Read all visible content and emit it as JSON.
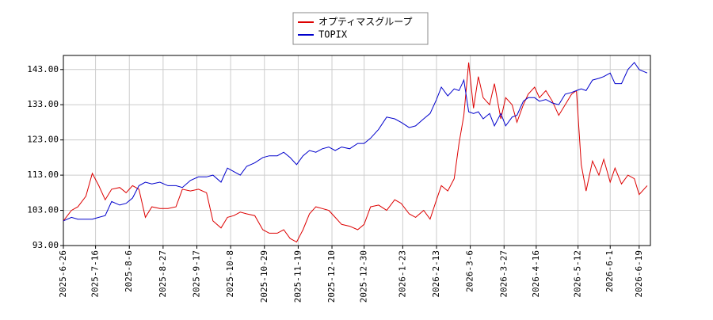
{
  "chart_data": {
    "type": "line",
    "x": [
      "2025-06-26",
      "2025-07-01",
      "2025-07-05",
      "2025-07-10",
      "2025-07-14",
      "2025-07-18",
      "2025-07-22",
      "2025-07-26",
      "2025-07-31",
      "2025-08-04",
      "2025-08-08",
      "2025-08-12",
      "2025-08-16",
      "2025-08-20",
      "2025-08-25",
      "2025-08-30",
      "2025-09-04",
      "2025-09-08",
      "2025-09-13",
      "2025-09-18",
      "2025-09-23",
      "2025-09-27",
      "2025-10-02",
      "2025-10-06",
      "2025-10-10",
      "2025-10-14",
      "2025-10-18",
      "2025-10-23",
      "2025-10-28",
      "2025-11-01",
      "2025-11-06",
      "2025-11-10",
      "2025-11-14",
      "2025-11-18",
      "2025-11-22",
      "2025-11-26",
      "2025-11-30",
      "2025-12-04",
      "2025-12-08",
      "2025-12-12",
      "2025-12-16",
      "2025-12-21",
      "2025-12-26",
      "2025-12-30",
      "2026-01-03",
      "2026-01-08",
      "2026-01-13",
      "2026-01-18",
      "2026-01-22",
      "2026-01-27",
      "2026-01-31",
      "2026-02-05",
      "2026-02-09",
      "2026-02-13",
      "2026-02-16",
      "2026-02-20",
      "2026-02-24",
      "2026-02-27",
      "2026-03-02",
      "2026-03-05",
      "2026-03-08",
      "2026-03-11",
      "2026-03-14",
      "2026-03-18",
      "2026-03-21",
      "2026-03-25",
      "2026-03-28",
      "2026-04-01",
      "2026-04-04",
      "2026-04-08",
      "2026-04-11",
      "2026-04-15",
      "2026-04-18",
      "2026-04-22",
      "2026-04-26",
      "2026-04-30",
      "2026-05-04",
      "2026-05-08",
      "2026-05-11",
      "2026-05-14",
      "2026-05-17",
      "2026-05-21",
      "2026-05-25",
      "2026-05-28",
      "2026-06-01",
      "2026-06-04",
      "2026-06-08",
      "2026-06-12",
      "2026-06-16",
      "2026-06-19",
      "2026-06-24"
    ],
    "series": [
      {
        "name": "オプティマスグループ",
        "color": "#dd0000",
        "values": [
          100,
          103,
          104,
          107,
          113.5,
          110,
          106,
          109,
          109.5,
          108,
          110,
          109,
          101,
          104,
          103.5,
          103.5,
          104,
          109,
          108.5,
          109,
          108,
          100,
          98,
          101,
          101.5,
          102.5,
          102,
          101.5,
          97.5,
          96.5,
          96.5,
          97.5,
          95,
          94,
          97.5,
          102,
          104,
          103.5,
          103,
          101,
          99,
          98.5,
          97.5,
          99,
          104,
          104.5,
          103,
          106,
          105,
          102,
          101,
          103,
          100.5,
          106,
          110,
          108.5,
          112,
          122,
          130,
          145,
          132,
          141,
          135,
          133,
          139,
          129,
          135,
          133,
          128,
          133,
          136,
          138,
          135,
          137,
          134,
          130,
          133,
          136,
          137,
          116,
          108.5,
          117,
          113,
          117.5,
          111,
          115,
          110.5,
          113,
          112,
          107.5,
          110
        ]
      },
      {
        "name": "TOPIX",
        "color": "#0000cc",
        "values": [
          100,
          101,
          100.5,
          100.5,
          100.5,
          101,
          101.5,
          105.5,
          104.5,
          105,
          106.5,
          110,
          111,
          110.5,
          111,
          110,
          110,
          109.5,
          111.5,
          112.5,
          112.5,
          113,
          111,
          115,
          114,
          113,
          115.5,
          116.5,
          118,
          118.5,
          118.5,
          119.5,
          118,
          116,
          118.5,
          120,
          119.5,
          120.5,
          121,
          120,
          121,
          120.5,
          122,
          122,
          123.5,
          126,
          129.5,
          129,
          128,
          126.5,
          127,
          129,
          130.5,
          134.5,
          138,
          135.5,
          137.5,
          137,
          140,
          131,
          130.5,
          131,
          129,
          130.5,
          127,
          130.5,
          127,
          129.5,
          130,
          134,
          135,
          135,
          134,
          134.5,
          133.5,
          133,
          136,
          136.5,
          137,
          137.5,
          137,
          140,
          140.5,
          141,
          142,
          139,
          139,
          143,
          145,
          143,
          142
        ]
      }
    ],
    "xlim": [
      "2025-06-26",
      "2026-06-26"
    ],
    "xticks": [
      {
        "value": "2025-06-26",
        "label": "2025-6-26"
      },
      {
        "value": "2025-07-16",
        "label": "2025-7-16"
      },
      {
        "value": "2025-08-06",
        "label": "2025-8-6"
      },
      {
        "value": "2025-08-27",
        "label": "2025-8-27"
      },
      {
        "value": "2025-09-17",
        "label": "2025-9-17"
      },
      {
        "value": "2025-10-08",
        "label": "2025-10-8"
      },
      {
        "value": "2025-10-29",
        "label": "2025-10-29"
      },
      {
        "value": "2025-11-19",
        "label": "2025-11-19"
      },
      {
        "value": "2025-12-10",
        "label": "2025-12-10"
      },
      {
        "value": "2025-12-30",
        "label": "2025-12-30"
      },
      {
        "value": "2026-01-23",
        "label": "2026-1-23"
      },
      {
        "value": "2026-02-13",
        "label": "2026-2-13"
      },
      {
        "value": "2026-03-06",
        "label": "2026-3-6"
      },
      {
        "value": "2026-03-27",
        "label": "2026-3-27"
      },
      {
        "value": "2026-04-16",
        "label": "2026-4-16"
      },
      {
        "value": "2026-05-12",
        "label": "2026-5-12"
      },
      {
        "value": "2026-06-01",
        "label": "2026-6-1"
      },
      {
        "value": "2026-06-19",
        "label": "2026-6-19"
      }
    ],
    "ylim": [
      93,
      147
    ],
    "yticks": [
      {
        "value": 93,
        "label": "93.00"
      },
      {
        "value": 103,
        "label": "103.00"
      },
      {
        "value": 113,
        "label": "113.00"
      },
      {
        "value": 123,
        "label": "123.00"
      },
      {
        "value": 133,
        "label": "133.00"
      },
      {
        "value": 143,
        "label": "143.00"
      }
    ],
    "grid": true,
    "legend": "top"
  }
}
